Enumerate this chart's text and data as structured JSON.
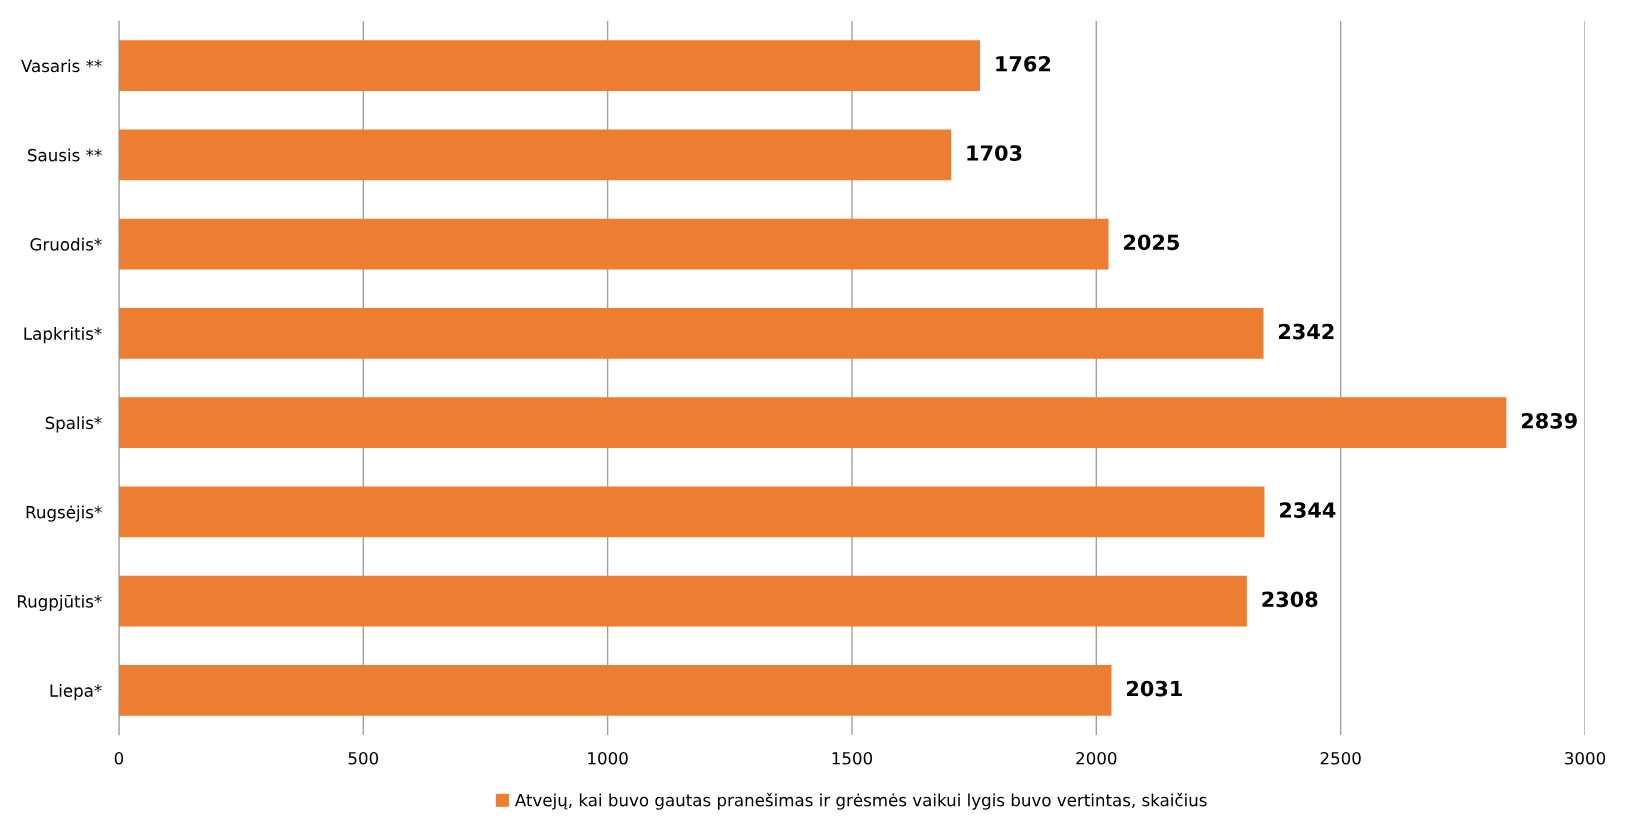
{
  "chart_data": {
    "type": "bar",
    "orientation": "horizontal",
    "categories": [
      "Vasaris **",
      "Sausis **",
      "Gruodis*",
      "Lapkritis*",
      "Spalis*",
      "Rugsėjis*",
      "Rugpjūtis*",
      "Liepa*"
    ],
    "series": [
      {
        "name": "Atvejų, kai buvo gautas pranešimas ir grėsmės vaikui lygis buvo vertintas, skaičius",
        "color": "#ed7d31",
        "values": [
          1762,
          1703,
          2025,
          2342,
          2839,
          2344,
          2308,
          2031
        ]
      }
    ],
    "xlim": [
      0,
      3000
    ],
    "xticks": [
      0,
      500,
      1000,
      1500,
      2000,
      2500,
      3000
    ],
    "grid": "x",
    "legend": "bottom",
    "data_labels": true
  }
}
